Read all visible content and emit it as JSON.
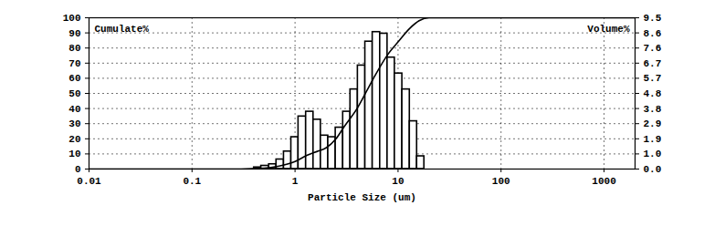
{
  "chart_data": {
    "type": "histogram",
    "x_label": "Particle Size (um)",
    "log": "x",
    "grid": true,
    "xlim": [
      0.01,
      2000
    ],
    "xticks": [
      0.01,
      0.1,
      1,
      10,
      100,
      1000
    ],
    "ylim": [
      0,
      100
    ],
    "yticks": [
      0,
      10,
      20,
      30,
      40,
      50,
      60,
      70,
      80,
      90,
      100
    ],
    "y2lim": [
      0,
      9.5
    ],
    "y2ticks": [
      {
        "value": 0,
        "label": "0.0"
      },
      {
        "value": 0.95,
        "label": "1.0"
      },
      1.9,
      {
        "value": 2.85,
        "label": "2.9"
      },
      3.8,
      {
        "value": 4.75,
        "label": "4.8"
      },
      5.7,
      {
        "value": 6.65,
        "label": "6.7"
      },
      7.6,
      {
        "value": 8.55,
        "label": "8.6"
      },
      9.5
    ],
    "bins": [
      0.4,
      0.47,
      0.56,
      0.66,
      0.78,
      0.92,
      1.08,
      1.28,
      1.51,
      1.78,
      2.1,
      2.48,
      2.93,
      3.45,
      4.07,
      4.81,
      5.67,
      6.7,
      7.9,
      9.3,
      11,
      13,
      15.3,
      18
    ],
    "series": [
      {
        "name": "Volume%",
        "type": "bar",
        "axis": "y2",
        "color": "#000000",
        "values": [
          0.1,
          0.2,
          0.3,
          0.6,
          1.1,
          2.0,
          3.3,
          3.6,
          3.1,
          2.1,
          2.0,
          2.6,
          3.6,
          5.0,
          6.5,
          8.0,
          8.6,
          8.5,
          7.0,
          6.0,
          5.0,
          3.0,
          0.8
        ]
      },
      {
        "name": "Cumulate%",
        "type": "line",
        "color": "#000000",
        "x": [
          0.01,
          0.3,
          0.5,
          0.7,
          1,
          1.3,
          1.7,
          2,
          2.5,
          3,
          4,
          5,
          6,
          8,
          10,
          13,
          16,
          20,
          2000
        ],
        "values": [
          0,
          0,
          0.5,
          2,
          5,
          9,
          12,
          14,
          20,
          28,
          40,
          52,
          62,
          76,
          84,
          93,
          98,
          100,
          100
        ]
      }
    ]
  }
}
